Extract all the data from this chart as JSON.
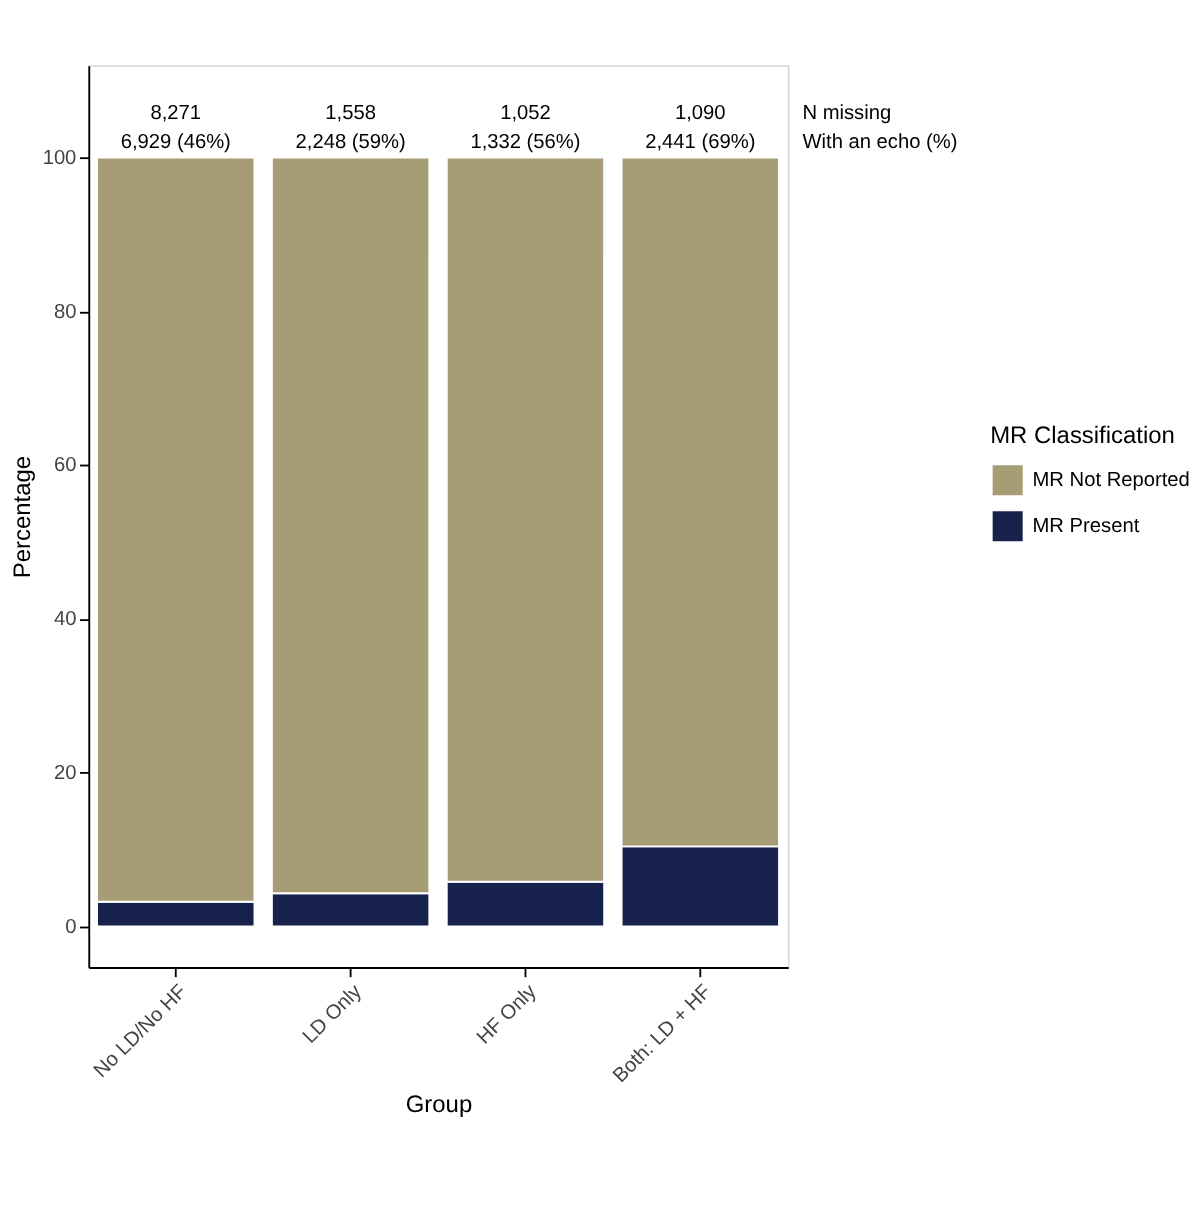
{
  "chart_data": {
    "type": "bar",
    "xlabel": "Group",
    "ylabel": "Percentage",
    "legend_title": "MR Classification",
    "legend": "right",
    "grid": false,
    "stacked": true,
    "categories": [
      "No LD/No HF",
      "LD Only",
      "HF Only",
      "Both: LD + HF"
    ],
    "series": [
      {
        "name": "MR Present",
        "color": "#16224b",
        "values": [
          3.2,
          4.3,
          5.8,
          10.4
        ]
      },
      {
        "name": "MR Not Reported",
        "color": "#a69d74",
        "values": [
          96.8,
          95.7,
          94.2,
          89.6
        ]
      }
    ],
    "ylim": [
      -5.3,
      112
    ],
    "yticks": [
      0,
      20,
      40,
      60,
      80,
      100
    ],
    "annotations": [
      "8,271",
      "1,558",
      "1,052",
      "1,090",
      "6,929 (46%)",
      "2,248 (59%)",
      "1,332 (56%)",
      "2,441 (69%)",
      "N missing",
      "With an echo (%)"
    ]
  }
}
